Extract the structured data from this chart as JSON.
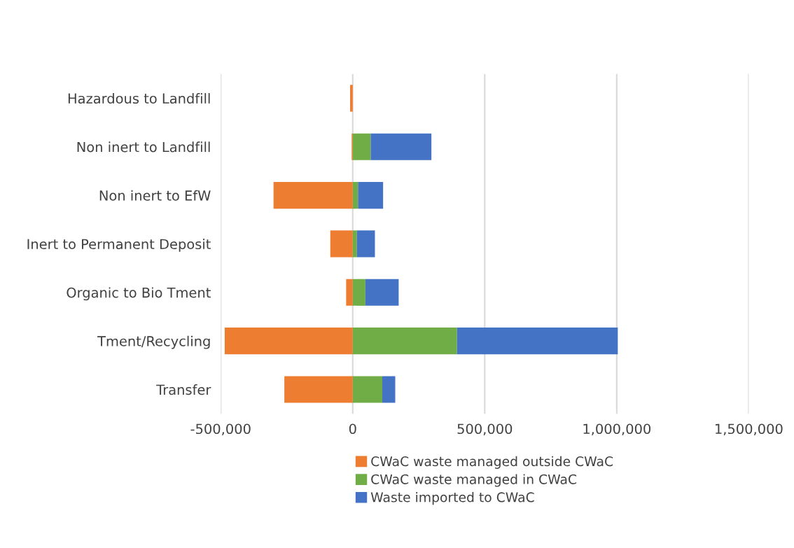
{
  "chart_data": {
    "type": "bar",
    "orientation": "horizontal",
    "stacked": true,
    "categories": [
      "Hazardous to Landfill",
      "Non inert to Landfill",
      "Non inert to EfW",
      "Inert to Permanent Deposit",
      "Organic to Bio Tment",
      "Tment/Recycling",
      "Transfer"
    ],
    "series": [
      {
        "name": "CWaC waste managed outside CWaC",
        "color": "#ed7d31",
        "values": [
          -10000,
          -4000,
          -300000,
          -85000,
          -25000,
          -485000,
          -259000
        ]
      },
      {
        "name": "CWaC waste managed in CWaC",
        "color": "#70ad47",
        "values": [
          null,
          68000,
          20000,
          16000,
          48000,
          395000,
          112000
        ]
      },
      {
        "name": "Waste imported to CWaC",
        "color": "#4472c4",
        "values": [
          null,
          230000,
          95000,
          68000,
          126000,
          609000,
          49000
        ]
      }
    ],
    "xlim": [
      -500000,
      1500000
    ],
    "xticks": [
      {
        "value": -500000,
        "label": "-500,000"
      },
      0,
      {
        "value": 500000,
        "label": "500,000"
      },
      {
        "value": 1000000,
        "label": "1,000,000"
      },
      {
        "value": 1500000,
        "label": "1,500,000"
      }
    ],
    "grid": "x",
    "legend": "bottom"
  }
}
